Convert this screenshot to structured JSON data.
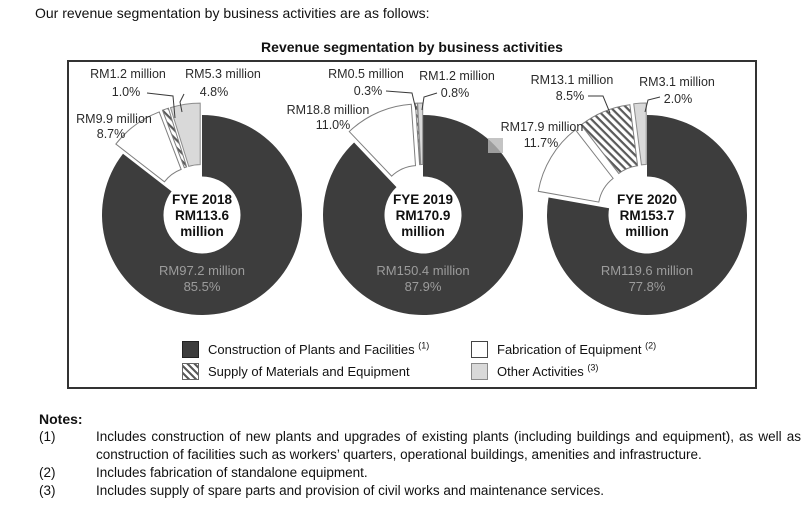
{
  "page": {
    "intro_text": "Our revenue segmentation by business activities are as follows:"
  },
  "chart_data": {
    "type": "pie",
    "subtype": "donut",
    "title": "Revenue segmentation by business activities",
    "unit": "RM million",
    "legend_position": "bottom-inside",
    "legend": [
      {
        "label": "Construction of Plants and Facilities",
        "ref": "(1)",
        "style": "dark",
        "color": "#3d3d3d"
      },
      {
        "label": "Fabrication of Equipment",
        "ref": "(2)",
        "style": "white",
        "color": "#ffffff"
      },
      {
        "label": "Supply of Materials and Equipment",
        "ref": "",
        "style": "hatched",
        "color": "hatch"
      },
      {
        "label": "Other Activities",
        "ref": "(3)",
        "style": "gray",
        "color": "#d9d9d9"
      }
    ],
    "charts": [
      {
        "fye": "FYE 2018",
        "total_million": 113.6,
        "center": {
          "line1": "FYE 2018",
          "line2": "RM113.6",
          "line3": "million"
        },
        "slices": [
          {
            "name": "Construction of Plants and Facilities",
            "value_million": 97.2,
            "pct": 85.5,
            "value_label": "RM97.2 million",
            "pct_label": "85.5%",
            "style": "dark"
          },
          {
            "name": "Fabrication of Equipment",
            "value_million": 9.9,
            "pct": 8.7,
            "value_label": "RM9.9 million",
            "pct_label": "8.7%",
            "style": "white"
          },
          {
            "name": "Supply of Materials and Equipment",
            "value_million": 1.2,
            "pct": 1.0,
            "value_label": "RM1.2 million",
            "pct_label": "1.0%",
            "style": "hatched"
          },
          {
            "name": "Other Activities",
            "value_million": 5.3,
            "pct": 4.8,
            "value_label": "RM5.3 million",
            "pct_label": "4.8%",
            "style": "gray"
          }
        ]
      },
      {
        "fye": "FYE 2019",
        "total_million": 170.9,
        "center": {
          "line1": "FYE 2019",
          "line2": "RM170.9",
          "line3": "million"
        },
        "slices": [
          {
            "name": "Construction of Plants and Facilities",
            "value_million": 150.4,
            "pct": 87.9,
            "value_label": "RM150.4 million",
            "pct_label": "87.9%",
            "style": "dark"
          },
          {
            "name": "Fabrication of Equipment",
            "value_million": 18.8,
            "pct": 11.0,
            "value_label": "RM18.8 million",
            "pct_label": "11.0%",
            "style": "white"
          },
          {
            "name": "Supply of Materials and Equipment",
            "value_million": 0.5,
            "pct": 0.3,
            "value_label": "RM0.5 million",
            "pct_label": "0.3%",
            "style": "hatched"
          },
          {
            "name": "Other Activities",
            "value_million": 1.2,
            "pct": 0.8,
            "value_label": "RM1.2 million",
            "pct_label": "0.8%",
            "style": "gray"
          }
        ]
      },
      {
        "fye": "FYE 2020",
        "total_million": 153.7,
        "center": {
          "line1": "FYE 2020",
          "line2": "RM153.7",
          "line3": "million"
        },
        "slices": [
          {
            "name": "Construction of Plants and Facilities",
            "value_million": 119.6,
            "pct": 77.8,
            "value_label": "RM119.6 million",
            "pct_label": "77.8%",
            "style": "dark"
          },
          {
            "name": "Fabrication of Equipment",
            "value_million": 17.9,
            "pct": 11.7,
            "value_label": "RM17.9 million",
            "pct_label": "11.7%",
            "style": "white"
          },
          {
            "name": "Supply of Materials and Equipment",
            "value_million": 13.1,
            "pct": 8.5,
            "value_label": "RM13.1 million",
            "pct_label": "8.5%",
            "style": "hatched"
          },
          {
            "name": "Other Activities",
            "value_million": 3.1,
            "pct": 2.0,
            "value_label": "RM3.1 million",
            "pct_label": "2.0%",
            "style": "gray"
          }
        ]
      }
    ]
  },
  "notes": {
    "heading": "Notes:",
    "items": [
      {
        "ref": "(1)",
        "text": "Includes construction of new plants and upgrades of existing plants (including buildings and equipment), as well as construction of facilities such as workers’ quarters, operational buildings, amenities and infrastructure."
      },
      {
        "ref": "(2)",
        "text": "Includes fabrication of standalone equipment."
      },
      {
        "ref": "(3)",
        "text": "Includes supply of spare parts and provision of civil works and maintenance services."
      }
    ]
  },
  "colors": {
    "slice_dark": "#3d3d3d",
    "slice_white": "#ffffff",
    "slice_gray": "#d9d9d9",
    "hatch_line": "#5a5a5a",
    "inner_label": "#9c9c9c",
    "box_border": "#333333"
  }
}
